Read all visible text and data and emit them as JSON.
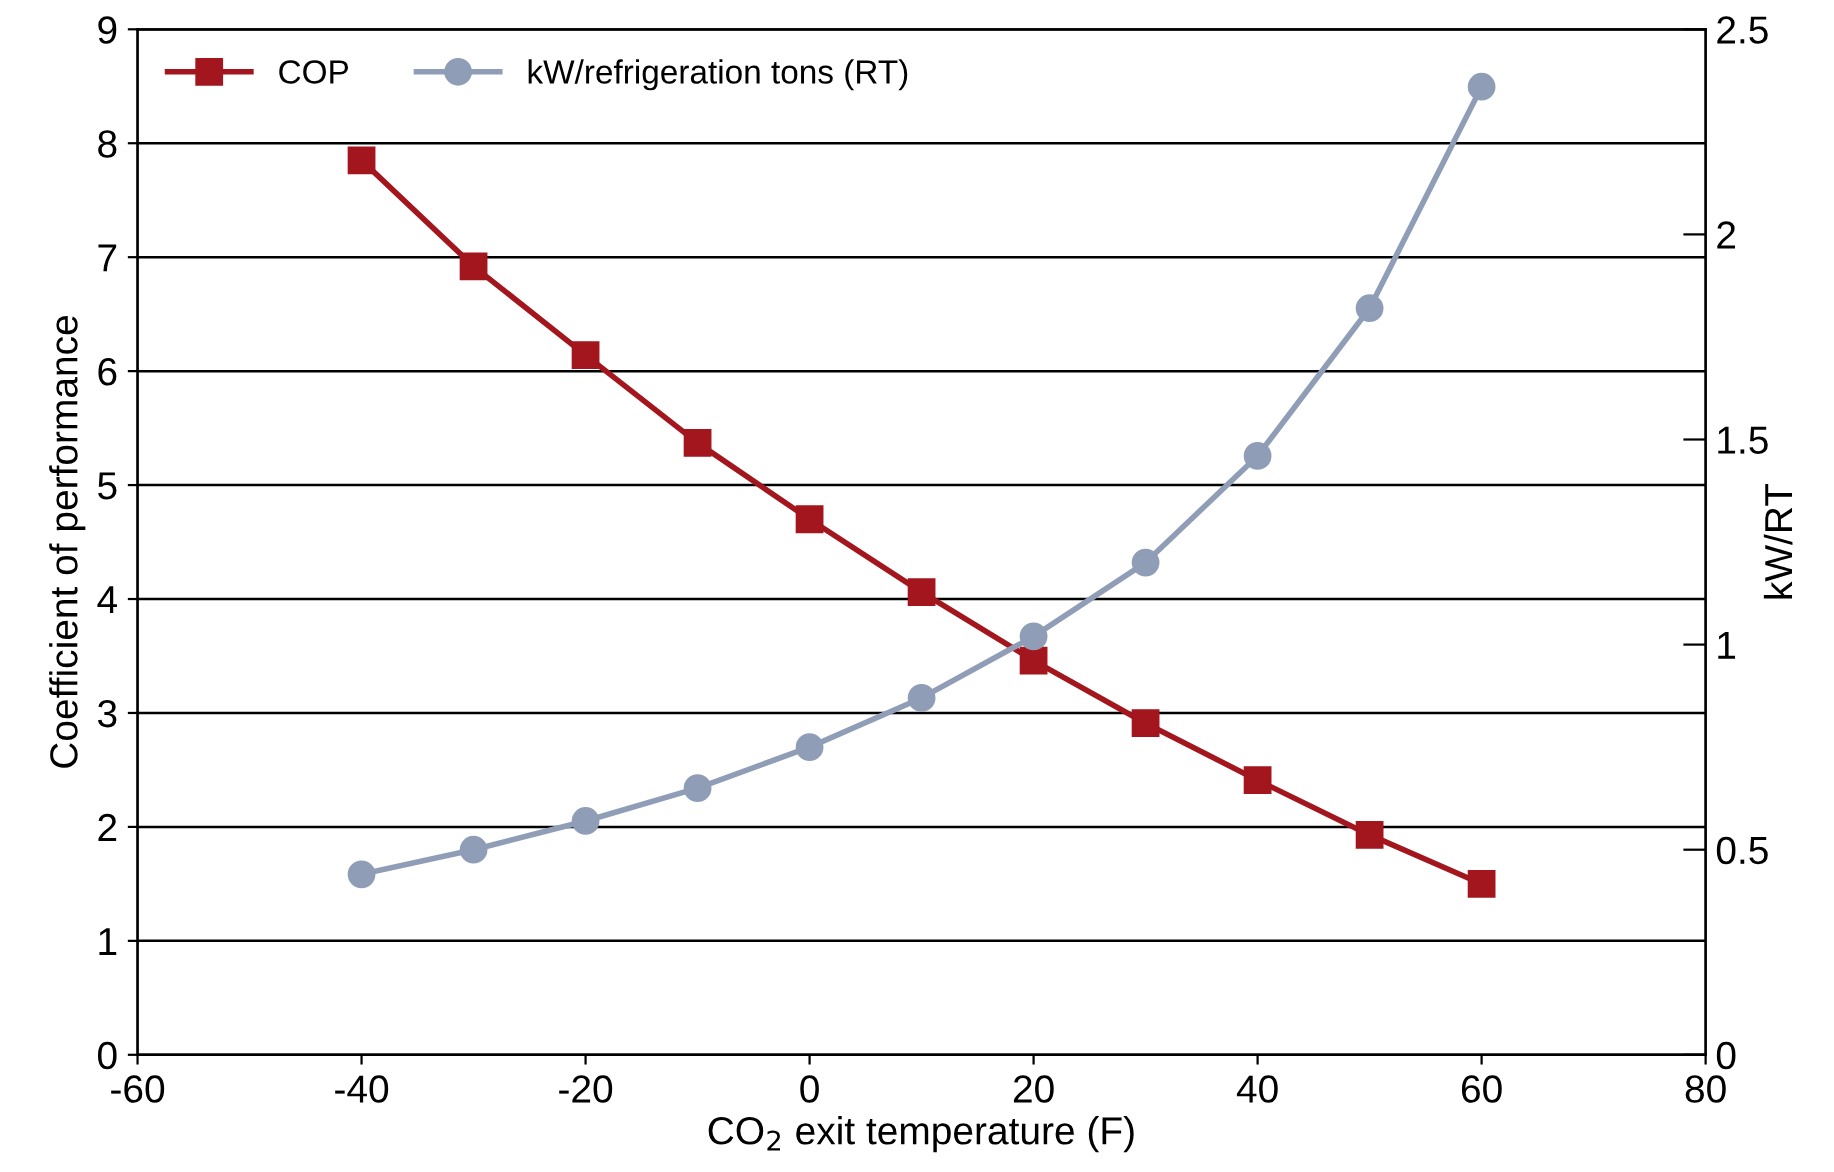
{
  "chart_data": {
    "type": "line",
    "xlabel": "CO$_{2}$ exit temperature (F)",
    "ylabel": "Coefficient of performance",
    "y2label": "kW/RT",
    "x": [
      -40,
      -30,
      -20,
      -10,
      0,
      10,
      20,
      30,
      40,
      50,
      60
    ],
    "series": [
      {
        "name": "COP",
        "color": "#a3161d",
        "marker": "square",
        "values": [
          7.85,
          6.92,
          6.14,
          5.37,
          4.7,
          4.06,
          3.46,
          2.91,
          2.41,
          1.93,
          1.5
        ]
      },
      {
        "name": "kW/refrigeration tons (RT)",
        "color": "#8f9db6",
        "marker": "circle",
        "axis": "y2",
        "values": [
          0.44,
          0.5,
          0.57,
          0.65,
          0.75,
          0.87,
          1.02,
          1.2,
          1.46,
          1.82,
          2.36
        ]
      }
    ],
    "xlim": [
      -60,
      80
    ],
    "xticks": [
      -60,
      -40,
      -20,
      0,
      20,
      40,
      60,
      80
    ],
    "ylim": [
      0,
      9
    ],
    "yticks": [
      0,
      1,
      2,
      3,
      4,
      5,
      6,
      7,
      8,
      9
    ],
    "y2lim": [
      0,
      2.5
    ],
    "y2ticks": [
      0,
      0.5,
      1,
      1.5,
      2,
      2.5
    ],
    "grid": "y",
    "legend": "top left",
    "line_style": "solid"
  }
}
